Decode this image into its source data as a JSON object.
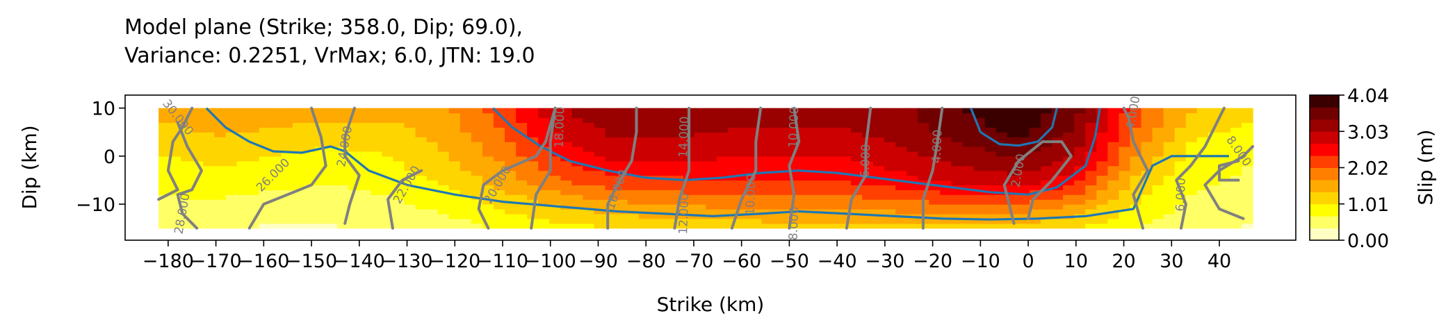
{
  "chart_data": {
    "type": "contour",
    "title_lines": [
      "Model plane (Strike; 358.0, Dip; 69.0),",
      "Variance: 0.2251, VrMax; 6.0, JTN: 19.0"
    ],
    "xlabel": "Strike (km)",
    "ylabel": "Dip (km)",
    "xlim": [
      -189,
      56
    ],
    "ylim": [
      -17.5,
      12.7
    ],
    "xticks": [
      -180,
      -170,
      -160,
      -150,
      -140,
      -130,
      -120,
      -110,
      -100,
      -90,
      -80,
      -70,
      -60,
      -50,
      -40,
      -30,
      -20,
      -10,
      0,
      10,
      20,
      30,
      40
    ],
    "yticks": [
      10,
      0,
      -10
    ],
    "colorbar": {
      "label": "Slip (m)",
      "ticks": [
        "4.04",
        "3.03",
        "2.02",
        "1.01",
        "0.00"
      ],
      "vmin": 0.0,
      "vmax": 4.04,
      "colors": [
        "#ffffc4",
        "#ffff66",
        "#ffff00",
        "#ffd500",
        "#ffaa00",
        "#ff7f00",
        "#ff4000",
        "#ff0000",
        "#cc0000",
        "#990000",
        "#700000",
        "#3a0000"
      ]
    },
    "slip_grid": {
      "x": [
        -182,
        -170,
        -158,
        -146,
        -134,
        -122,
        -110,
        -98,
        -86,
        -74,
        -62,
        -50,
        -38,
        -26,
        -14,
        -2,
        10,
        22,
        34,
        47
      ],
      "y": [
        10,
        5,
        0,
        -5,
        -10,
        -15
      ],
      "z": [
        [
          1.5,
          1.6,
          1.6,
          1.5,
          1.5,
          1.6,
          2.2,
          3.0,
          3.3,
          3.3,
          3.2,
          3.2,
          3.2,
          3.3,
          3.7,
          4.0,
          3.5,
          2.2,
          1.4,
          1.2
        ],
        [
          1.2,
          1.4,
          1.3,
          1.2,
          1.2,
          1.5,
          2.0,
          2.8,
          3.1,
          3.1,
          3.0,
          3.0,
          3.0,
          3.2,
          3.5,
          3.8,
          3.3,
          2.0,
          1.1,
          0.9
        ],
        [
          1.0,
          1.1,
          1.0,
          0.9,
          1.0,
          1.3,
          1.8,
          2.4,
          2.8,
          2.8,
          2.7,
          2.7,
          2.7,
          2.9,
          3.2,
          3.4,
          3.0,
          1.7,
          0.9,
          0.7
        ],
        [
          0.8,
          0.9,
          0.8,
          0.7,
          0.8,
          1.1,
          1.5,
          2.0,
          2.3,
          2.3,
          2.4,
          2.4,
          2.4,
          2.6,
          2.8,
          2.9,
          2.5,
          1.3,
          0.8,
          0.6
        ],
        [
          0.6,
          0.6,
          0.5,
          0.5,
          0.6,
          0.8,
          1.1,
          1.4,
          1.6,
          1.7,
          1.8,
          1.8,
          1.8,
          1.9,
          2.0,
          2.0,
          1.7,
          1.0,
          0.6,
          0.4
        ],
        [
          0.4,
          0.4,
          0.3,
          0.3,
          0.4,
          0.5,
          0.7,
          0.9,
          1.0,
          1.1,
          1.1,
          1.2,
          1.2,
          1.2,
          1.2,
          1.2,
          1.0,
          0.7,
          0.4,
          0.3
        ]
      ]
    },
    "slip_contours": {
      "color": "#1f77b4",
      "lines": [
        [
          [
            -172,
            10
          ],
          [
            -168,
            6
          ],
          [
            -163,
            3
          ],
          [
            -158,
            1
          ],
          [
            -152,
            0.7
          ],
          [
            -146,
            2
          ],
          [
            -143,
            1
          ],
          [
            -138,
            -3
          ],
          [
            -130,
            -6
          ],
          [
            -120,
            -8
          ],
          [
            -110,
            -9.5
          ],
          [
            -98,
            -10.5
          ],
          [
            -86,
            -11.5
          ],
          [
            -76,
            -12
          ],
          [
            -66,
            -12.5
          ],
          [
            -56,
            -12
          ],
          [
            -48,
            -11.5
          ],
          [
            -38,
            -12
          ],
          [
            -28,
            -12.5
          ],
          [
            -18,
            -13
          ],
          [
            -8,
            -13.2
          ],
          [
            2,
            -13
          ],
          [
            12,
            -12.5
          ],
          [
            22,
            -11
          ],
          [
            26,
            -2
          ],
          [
            30,
            0
          ],
          [
            38,
            0
          ],
          [
            42,
            0
          ]
        ],
        [
          [
            -112,
            10
          ],
          [
            -108,
            6
          ],
          [
            -102,
            2
          ],
          [
            -96,
            -1
          ],
          [
            -88,
            -3
          ],
          [
            -80,
            -4.5
          ],
          [
            -72,
            -5
          ],
          [
            -64,
            -4.5
          ],
          [
            -56,
            -3.5
          ],
          [
            -48,
            -3
          ],
          [
            -40,
            -3.5
          ],
          [
            -32,
            -4.5
          ],
          [
            -24,
            -5.5
          ],
          [
            -16,
            -6.5
          ],
          [
            -8,
            -7.5
          ],
          [
            0,
            -8
          ],
          [
            6,
            -6.5
          ],
          [
            12,
            -2
          ],
          [
            14,
            4
          ],
          [
            15,
            10
          ]
        ],
        [
          [
            -12,
            10
          ],
          [
            -10,
            5
          ],
          [
            -6,
            2.5
          ],
          [
            -2,
            2.2
          ],
          [
            2,
            3
          ],
          [
            5,
            6
          ],
          [
            6,
            10
          ]
        ]
      ]
    },
    "rupture_contours": {
      "color": "#808080",
      "label_color": "#808080",
      "lines": [
        [
          [
            -182,
            -9
          ],
          [
            -178,
            -7
          ],
          [
            -180,
            -3
          ],
          [
            -179,
            3
          ],
          [
            -177,
            6
          ],
          [
            -175,
            10
          ]
        ],
        [
          [
            -174,
            -15
          ],
          [
            -177,
            -12
          ],
          [
            -178,
            -8
          ],
          [
            -175,
            -7
          ],
          [
            -173,
            -3
          ],
          [
            -176,
            2
          ],
          [
            -178,
            7
          ]
        ],
        [
          [
            -163,
            -15
          ],
          [
            -160,
            -10
          ],
          [
            -155,
            -8
          ],
          [
            -150,
            -6
          ],
          [
            -147,
            -2
          ],
          [
            -148,
            4
          ],
          [
            -150,
            10
          ]
        ],
        [
          [
            -143,
            -14
          ],
          [
            -142,
            -10
          ],
          [
            -140,
            -4
          ],
          [
            -143,
            0
          ],
          [
            -143,
            4
          ],
          [
            -141,
            10
          ]
        ],
        [
          [
            -133,
            -15
          ],
          [
            -134,
            -9
          ],
          [
            -131,
            -5
          ],
          [
            -127,
            -3
          ]
        ],
        [
          [
            -113,
            -15
          ],
          [
            -115,
            -11
          ],
          [
            -114,
            -6
          ],
          [
            -110,
            -3
          ],
          [
            -103,
            0
          ],
          [
            -101,
            3
          ],
          [
            -99,
            10
          ]
        ],
        [
          [
            -104,
            -15
          ],
          [
            -103,
            -8
          ],
          [
            -100,
            -3
          ],
          [
            -100,
            3
          ],
          [
            -99,
            10
          ]
        ],
        [
          [
            -88,
            -15
          ],
          [
            -88,
            -10
          ],
          [
            -86,
            -6
          ],
          [
            -83,
            -1
          ],
          [
            -82,
            5
          ],
          [
            -82,
            10
          ]
        ],
        [
          [
            -74,
            -15
          ],
          [
            -73,
            -9
          ],
          [
            -71,
            -3
          ],
          [
            -71,
            3
          ],
          [
            -71,
            10
          ]
        ],
        [
          [
            -62,
            -15
          ],
          [
            -60,
            -9
          ],
          [
            -57,
            -3
          ],
          [
            -57,
            3
          ],
          [
            -56,
            10
          ]
        ],
        [
          [
            -50,
            -15
          ],
          [
            -49,
            -8
          ],
          [
            -50,
            -2
          ],
          [
            -48,
            3
          ],
          [
            -49,
            10
          ]
        ],
        [
          [
            -38,
            -15
          ],
          [
            -37,
            -9
          ],
          [
            -34,
            -4
          ],
          [
            -34,
            2
          ],
          [
            -33,
            10
          ]
        ],
        [
          [
            -22,
            -15
          ],
          [
            -22,
            -9
          ],
          [
            -20,
            -3
          ],
          [
            -19,
            3
          ],
          [
            -18,
            10
          ]
        ],
        [
          [
            -3,
            -14
          ],
          [
            -4,
            -10
          ],
          [
            -5,
            -6
          ],
          [
            -2,
            -1
          ],
          [
            3,
            3
          ],
          [
            7,
            3
          ],
          [
            9,
            0
          ],
          [
            5,
            -5
          ],
          [
            1,
            -9
          ],
          [
            0,
            -13
          ]
        ],
        [
          [
            24,
            -15
          ],
          [
            22,
            -8
          ],
          [
            25,
            -3
          ],
          [
            22,
            3
          ],
          [
            21,
            8
          ],
          [
            20,
            10
          ]
        ],
        [
          [
            32,
            -15
          ],
          [
            33,
            -10
          ],
          [
            31,
            -5
          ],
          [
            34,
            -2
          ],
          [
            37,
            2
          ],
          [
            40,
            8
          ],
          [
            41,
            10
          ]
        ],
        [
          [
            45,
            -13
          ],
          [
            40,
            -11
          ],
          [
            37,
            -6
          ],
          [
            40,
            -3
          ],
          [
            45,
            0
          ],
          [
            47,
            2
          ]
        ],
        [
          [
            44,
            -5
          ],
          [
            40,
            -5
          ],
          [
            40,
            -2
          ],
          [
            44,
            -1
          ]
        ]
      ],
      "labels": [
        {
          "text": "30.000",
          "x": -178,
          "y": 8,
          "rot": 52
        },
        {
          "text": "28.000",
          "x": -177,
          "y": -12,
          "rot": -80
        },
        {
          "text": "26.000",
          "x": -158,
          "y": -4,
          "rot": -45
        },
        {
          "text": "24.000",
          "x": -143,
          "y": 2,
          "rot": -80
        },
        {
          "text": "22.000",
          "x": -130,
          "y": -6,
          "rot": -60
        },
        {
          "text": "20.000",
          "x": -111,
          "y": -6,
          "rot": -60
        },
        {
          "text": "18.000",
          "x": -98,
          "y": 6,
          "rot": -88
        },
        {
          "text": "16.000",
          "x": -86,
          "y": -7,
          "rot": -70
        },
        {
          "text": "14.000",
          "x": -72,
          "y": 4,
          "rot": -88
        },
        {
          "text": "12.000",
          "x": -72,
          "y": -12,
          "rot": -88
        },
        {
          "text": "10.000",
          "x": -58,
          "y": -8,
          "rot": -88
        },
        {
          "text": "10.000",
          "x": -49,
          "y": 6,
          "rot": -88
        },
        {
          "text": "8.000",
          "x": -49,
          "y": -14,
          "rot": -88
        },
        {
          "text": "6.000",
          "x": -34,
          "y": -1,
          "rot": -88
        },
        {
          "text": "4.000",
          "x": -19,
          "y": 2,
          "rot": -88
        },
        {
          "text": "2.000",
          "x": -2,
          "y": -3,
          "rot": -80
        },
        {
          "text": "4.000",
          "x": 22,
          "y": 9,
          "rot": -80
        },
        {
          "text": "6.000",
          "x": 32,
          "y": -8,
          "rot": -88
        },
        {
          "text": "8.000",
          "x": 44,
          "y": 1,
          "rot": 55
        }
      ]
    }
  }
}
